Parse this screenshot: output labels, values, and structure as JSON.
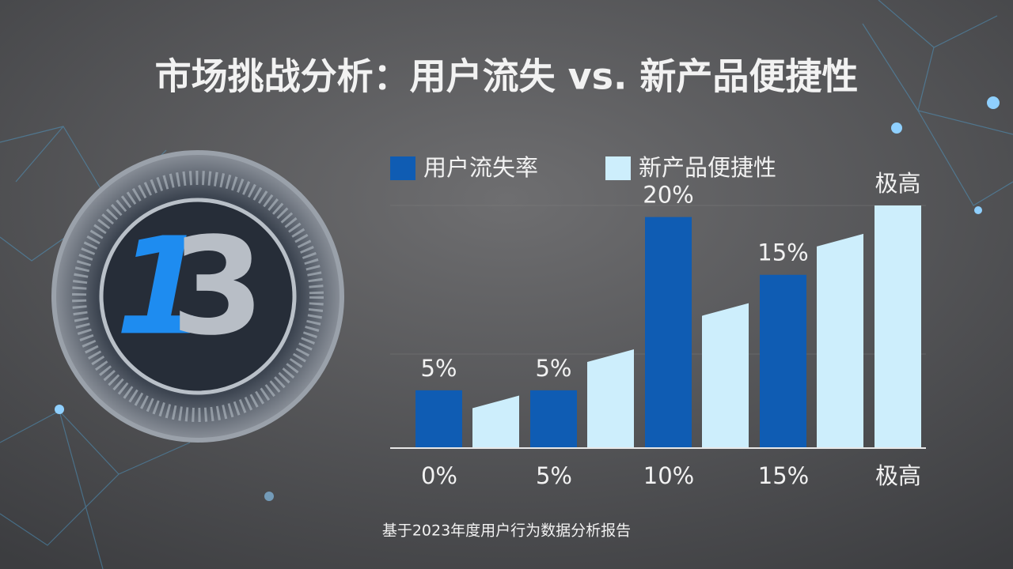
{
  "logo": {
    "digits": [
      "1",
      "3"
    ]
  },
  "chart_data": {
    "type": "bar",
    "title": "市场挑战分析：用户流失 vs. 新产品便捷性",
    "categories": [
      "0%",
      "5%",
      "10%",
      "15%",
      "极高"
    ],
    "series": [
      {
        "name": "用户流失率",
        "color": "#0f5cb3",
        "values": [
          5,
          5,
          20,
          15,
          null
        ],
        "value_labels": [
          "5%",
          "5%",
          "20%",
          "15%",
          null
        ]
      },
      {
        "name": "新产品便捷性",
        "color": "#cdeefc",
        "values": [
          4,
          8,
          12,
          18,
          21
        ],
        "value_labels": [
          null,
          null,
          null,
          null,
          "极高"
        ]
      }
    ],
    "footnote": "基于2023年度用户行为数据分析报告"
  }
}
